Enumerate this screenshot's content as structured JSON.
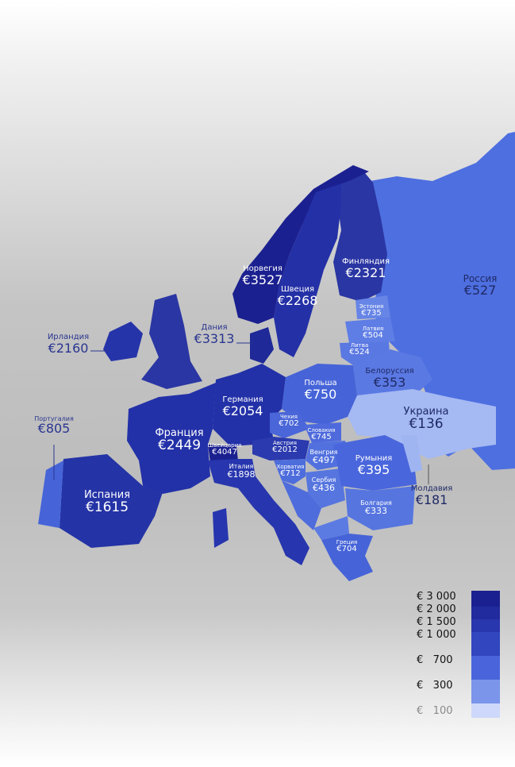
{
  "colors": {
    "russia": "#4e6fe0",
    "ukraine": "#a5b9f3",
    "belarus": "#5b79e3",
    "baltics": "#6785e6",
    "central": "#4664d8",
    "south_east": "#5473de",
    "west": "#2331a8",
    "nordic": "#2a36a3",
    "dark": "#1b2090",
    "moldova": "#9fb5f2"
  },
  "countries": [
    {
      "key": "norway",
      "name": "Норвегия",
      "value": "€3527"
    },
    {
      "key": "sweden",
      "name": "Швеция",
      "value": "€2268"
    },
    {
      "key": "finland",
      "name": "Финляндия",
      "value": "€2321"
    },
    {
      "key": "russia",
      "name": "Россия",
      "value": "€527"
    },
    {
      "key": "estonia",
      "name": "Эстония",
      "value": "€735"
    },
    {
      "key": "latvia",
      "name": "Латвия",
      "value": "€504"
    },
    {
      "key": "lithuania",
      "name": "Литва",
      "value": "€524"
    },
    {
      "key": "denmark",
      "name": "Дания",
      "value": "€3313"
    },
    {
      "key": "ireland",
      "name": "Ирландия",
      "value": "€2160"
    },
    {
      "key": "belarus",
      "name": "Белоруссия",
      "value": "€353"
    },
    {
      "key": "poland",
      "name": "Польша",
      "value": "€750"
    },
    {
      "key": "germany",
      "name": "Германия",
      "value": "€2054"
    },
    {
      "key": "ukraine",
      "name": "Украина",
      "value": "€136"
    },
    {
      "key": "portugal",
      "name": "Португалия",
      "value": "€805"
    },
    {
      "key": "france",
      "name": "Франция",
      "value": "€2449"
    },
    {
      "key": "czechia",
      "name": "Чехия",
      "value": "€702"
    },
    {
      "key": "slovakia",
      "name": "Словакия",
      "value": "€745"
    },
    {
      "key": "switzerland",
      "name": "Швейцария",
      "value": "€4047"
    },
    {
      "key": "austria",
      "name": "Австрия",
      "value": "€2012"
    },
    {
      "key": "hungary",
      "name": "Венгрия",
      "value": "€497"
    },
    {
      "key": "romania",
      "name": "Румыния",
      "value": "€395"
    },
    {
      "key": "italy",
      "name": "Италия",
      "value": "€1898"
    },
    {
      "key": "croatia",
      "name": "Хорватия",
      "value": "€712"
    },
    {
      "key": "serbia",
      "name": "Сербия",
      "value": "€436"
    },
    {
      "key": "moldova",
      "name": "Молдавия",
      "value": "€181"
    },
    {
      "key": "spain",
      "name": "Испания",
      "value": "€1615"
    },
    {
      "key": "bulgaria",
      "name": "Болгария",
      "value": "€333"
    },
    {
      "key": "greece",
      "name": "Греция",
      "value": "€704"
    }
  ],
  "legend": {
    "items": [
      {
        "label": "€ 3 000",
        "color": "#1b2090"
      },
      {
        "label": "€ 2 000",
        "color": "#212b9e"
      },
      {
        "label": "€ 1 500",
        "color": "#2837ad"
      },
      {
        "label": "€ 1 000",
        "color": "#3146bf"
      },
      {
        "label": "€   700",
        "color": "#4a65db"
      },
      {
        "label": "€   300",
        "color": "#7a95ea"
      },
      {
        "label": "€   100",
        "color": "#cdd8fa"
      }
    ]
  }
}
